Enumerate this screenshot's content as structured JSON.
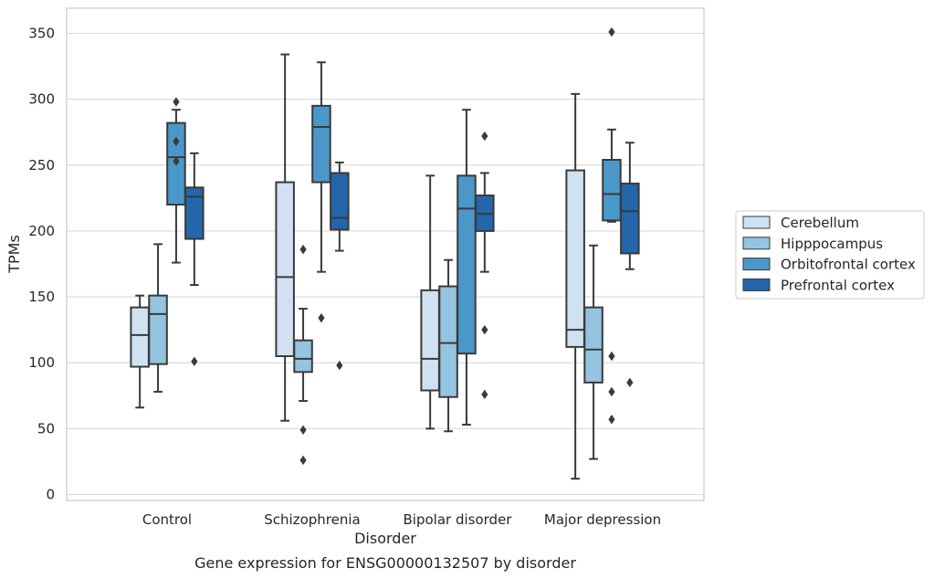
{
  "chart_data": {
    "type": "box",
    "caption": "Gene expression for ENSG00000132507 by disorder",
    "xlabel": "Disorder",
    "ylabel": "TPMs",
    "ylim": [
      -4,
      369
    ],
    "yticks": [
      0,
      50,
      100,
      150,
      200,
      250,
      300,
      350
    ],
    "grid": "horizontal",
    "legend_placement": "right",
    "categories": [
      "Control",
      "Schizophrenia",
      "Bipolar disorder",
      "Major depression"
    ],
    "series": [
      {
        "name": "Cerebellum",
        "color": "#d0e1f2",
        "boxes": [
          {
            "whisker_low": 66,
            "q1": 97,
            "median": 121,
            "q3": 142,
            "whisker_high": 151,
            "outliers": []
          },
          {
            "whisker_low": 56,
            "q1": 105,
            "median": 165,
            "q3": 237,
            "whisker_high": 334,
            "outliers": []
          },
          {
            "whisker_low": 50,
            "q1": 79,
            "median": 103,
            "q3": 155,
            "whisker_high": 242,
            "outliers": []
          },
          {
            "whisker_low": 12,
            "q1": 112,
            "median": 125,
            "q3": 246,
            "whisker_high": 304,
            "outliers": []
          }
        ]
      },
      {
        "name": "Hipppocampus",
        "color": "#94c4df",
        "boxes": [
          {
            "whisker_low": 78,
            "q1": 99,
            "median": 137,
            "q3": 151,
            "whisker_high": 190,
            "outliers": []
          },
          {
            "whisker_low": 71,
            "q1": 93,
            "median": 103,
            "q3": 117,
            "whisker_high": 141,
            "outliers": [
              186,
              49,
              26
            ]
          },
          {
            "whisker_low": 48,
            "q1": 74,
            "median": 115,
            "q3": 158,
            "whisker_high": 178,
            "outliers": []
          },
          {
            "whisker_low": 27,
            "q1": 85,
            "median": 110,
            "q3": 142,
            "whisker_high": 189,
            "outliers": []
          }
        ]
      },
      {
        "name": "Orbitofrontal cortex",
        "color": "#4a98c9",
        "boxes": [
          {
            "whisker_low": 176,
            "q1": 220,
            "median": 256,
            "q3": 282,
            "whisker_high": 292,
            "outliers": [
              298,
              268,
              253
            ]
          },
          {
            "whisker_low": 169,
            "q1": 237,
            "median": 279,
            "q3": 295,
            "whisker_high": 328,
            "outliers": [
              134
            ]
          },
          {
            "whisker_low": 53,
            "q1": 107,
            "median": 217,
            "q3": 242,
            "whisker_high": 292,
            "outliers": []
          },
          {
            "whisker_low": 207,
            "q1": 208,
            "median": 228,
            "q3": 254,
            "whisker_high": 277,
            "outliers": [
              351,
              105,
              78,
              57
            ]
          }
        ]
      },
      {
        "name": "Prefrontal cortex",
        "color": "#2466aa",
        "boxes": [
          {
            "whisker_low": 159,
            "q1": 194,
            "median": 226,
            "q3": 233,
            "whisker_high": 259,
            "outliers": [
              101
            ]
          },
          {
            "whisker_low": 185,
            "q1": 201,
            "median": 210,
            "q3": 244,
            "whisker_high": 252,
            "outliers": [
              98
            ]
          },
          {
            "whisker_low": 169,
            "q1": 200,
            "median": 213,
            "q3": 227,
            "whisker_high": 244,
            "outliers": [
              272,
              125,
              76
            ]
          },
          {
            "whisker_low": 171,
            "q1": 183,
            "median": 215,
            "q3": 236,
            "whisker_high": 267,
            "outliers": [
              85
            ]
          }
        ]
      }
    ]
  }
}
